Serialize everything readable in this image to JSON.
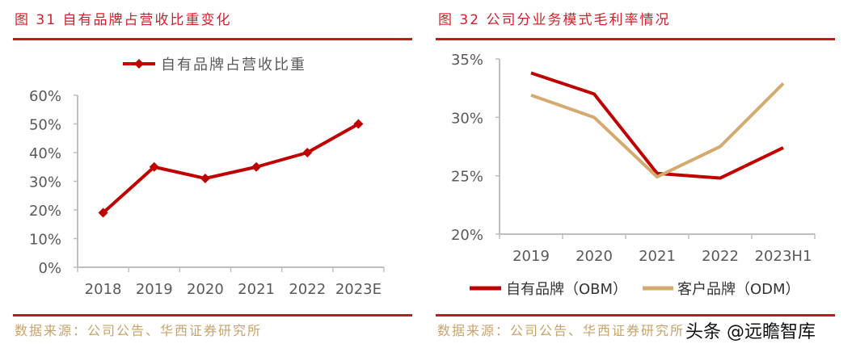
{
  "left": {
    "title": "图 31 自有品牌占营收比重变化",
    "source": "数据来源：公司公告、华西证券研究所"
  },
  "right": {
    "title": "图 32 公司分业务模式毛利率情况",
    "source": "数据来源：公司公告、华西证券研究所"
  },
  "watermark": "头条 @远瞻智库",
  "colors": {
    "red": "#c00000",
    "tan": "#d4aa6e",
    "axis": "#bfbfbf",
    "text": "#595959"
  },
  "chart_data": [
    {
      "type": "line",
      "title": "自有品牌占营收比重变化",
      "categories": [
        "2018",
        "2019",
        "2020",
        "2021",
        "2022",
        "2023E"
      ],
      "series": [
        {
          "name": "自有品牌占营收比重",
          "values": [
            19,
            35,
            31,
            35,
            40,
            50
          ],
          "color": "#c00000",
          "marker": "diamond"
        }
      ],
      "ylim": [
        0,
        60
      ],
      "yticks": [
        "0%",
        "10%",
        "20%",
        "30%",
        "40%",
        "50%",
        "60%"
      ],
      "legend": "top",
      "grid": false
    },
    {
      "type": "line",
      "title": "公司分业务模式毛利率情况",
      "categories": [
        "2019",
        "2020",
        "2021",
        "2022",
        "2023H1"
      ],
      "series": [
        {
          "name": "自有品牌（OBM）",
          "values": [
            33.8,
            32.0,
            25.2,
            24.8,
            27.4
          ],
          "color": "#c00000"
        },
        {
          "name": "客户品牌（ODM）",
          "values": [
            31.9,
            30.0,
            24.9,
            27.5,
            32.9
          ],
          "color": "#d4aa6e"
        }
      ],
      "ylim": [
        20,
        35
      ],
      "yticks": [
        "20%",
        "25%",
        "30%",
        "35%"
      ],
      "legend": "bottom",
      "grid": false
    }
  ]
}
